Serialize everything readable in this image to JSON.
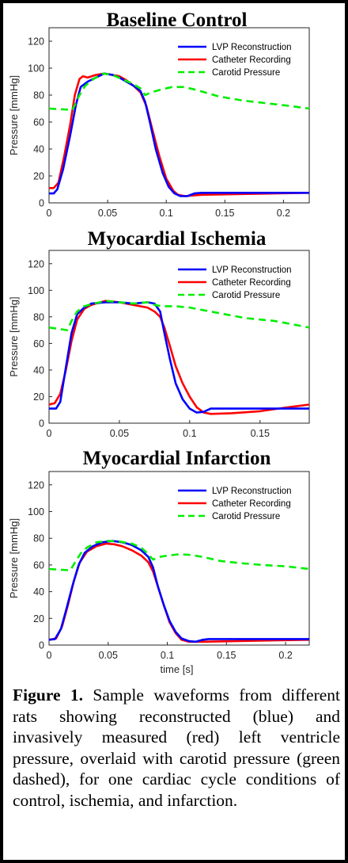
{
  "caption": {
    "label": "Figure 1.",
    "text": "Sample waveforms from different rats showing reconstructed (blue) and invasively measured (red) left ventricle pressure, overlaid with carotid pressure (green dashed), for one cardiac cycle conditions of control, ischemia, and infarction."
  },
  "colors": {
    "lvp": "#0000ff",
    "catheter": "#ff0000",
    "carotid": "#00ee00"
  },
  "chart_data": [
    {
      "type": "line",
      "title": "Baseline Control",
      "ylabel": "Pressure [mmHg]",
      "xlabel": "",
      "xlim": [
        0,
        0.222
      ],
      "ylim": [
        0,
        130
      ],
      "xticks": [
        0,
        0.05,
        0.1,
        0.15,
        0.2
      ],
      "xticklabels": [
        "0",
        "0.05",
        "0.1",
        "0.15",
        "0.2"
      ],
      "yticks": [
        0,
        20,
        40,
        60,
        80,
        100,
        120
      ],
      "legend": "top-right",
      "series": [
        {
          "name": "LVP Reconstruction",
          "style": "solid",
          "color": "#0000ff",
          "points": [
            [
              0,
              7
            ],
            [
              0.004,
              7
            ],
            [
              0.007,
              10
            ],
            [
              0.012,
              25
            ],
            [
              0.018,
              50
            ],
            [
              0.023,
              73
            ],
            [
              0.027,
              86
            ],
            [
              0.033,
              90
            ],
            [
              0.04,
              93
            ],
            [
              0.047,
              96
            ],
            [
              0.054,
              95
            ],
            [
              0.06,
              93
            ],
            [
              0.066,
              90
            ],
            [
              0.072,
              87
            ],
            [
              0.078,
              83
            ],
            [
              0.082,
              75
            ],
            [
              0.086,
              60
            ],
            [
              0.091,
              40
            ],
            [
              0.097,
              22
            ],
            [
              0.102,
              12
            ],
            [
              0.107,
              7
            ],
            [
              0.112,
              5
            ],
            [
              0.118,
              5
            ],
            [
              0.124,
              7
            ],
            [
              0.13,
              7.5
            ],
            [
              0.222,
              7.5
            ]
          ]
        },
        {
          "name": "Catheter Recording",
          "style": "solid",
          "color": "#ff0000",
          "points": [
            [
              0,
              11
            ],
            [
              0.004,
              11
            ],
            [
              0.008,
              15
            ],
            [
              0.013,
              35
            ],
            [
              0.018,
              58
            ],
            [
              0.022,
              80
            ],
            [
              0.026,
              92
            ],
            [
              0.029,
              94
            ],
            [
              0.033,
              93
            ],
            [
              0.04,
              95
            ],
            [
              0.047,
              96
            ],
            [
              0.054,
              95
            ],
            [
              0.06,
              94
            ],
            [
              0.066,
              91
            ],
            [
              0.072,
              87
            ],
            [
              0.078,
              82
            ],
            [
              0.083,
              72
            ],
            [
              0.088,
              55
            ],
            [
              0.094,
              35
            ],
            [
              0.1,
              18
            ],
            [
              0.106,
              9
            ],
            [
              0.11,
              6
            ],
            [
              0.116,
              5
            ],
            [
              0.13,
              6
            ],
            [
              0.16,
              6.5
            ],
            [
              0.222,
              7.5
            ]
          ]
        },
        {
          "name": "Carotid Pressure",
          "style": "dashed",
          "color": "#00ee00",
          "points": [
            [
              0,
              70
            ],
            [
              0.02,
              69
            ],
            [
              0.026,
              80
            ],
            [
              0.031,
              87
            ],
            [
              0.038,
              92
            ],
            [
              0.046,
              96
            ],
            [
              0.054,
              95
            ],
            [
              0.062,
              92
            ],
            [
              0.07,
              89
            ],
            [
              0.078,
              85
            ],
            [
              0.082,
              80
            ],
            [
              0.087,
              82
            ],
            [
              0.095,
              84
            ],
            [
              0.105,
              86
            ],
            [
              0.115,
              86
            ],
            [
              0.125,
              84
            ],
            [
              0.145,
              79
            ],
            [
              0.165,
              76
            ],
            [
              0.185,
              74
            ],
            [
              0.205,
              72
            ],
            [
              0.222,
              70
            ]
          ]
        }
      ]
    },
    {
      "type": "line",
      "title": "Myocardial Ischemia",
      "ylabel": "Pressure [mmHg]",
      "xlabel": "",
      "xlim": [
        0,
        0.185
      ],
      "ylim": [
        0,
        130
      ],
      "xticks": [
        0,
        0.05,
        0.1,
        0.15
      ],
      "xticklabels": [
        "0",
        "0.05",
        "0.1",
        "0.15"
      ],
      "yticks": [
        0,
        20,
        40,
        60,
        80,
        100,
        120
      ],
      "legend": "top-right",
      "series": [
        {
          "name": "LVP Reconstruction",
          "style": "solid",
          "color": "#0000ff",
          "points": [
            [
              0,
              11
            ],
            [
              0.005,
              11
            ],
            [
              0.008,
              16
            ],
            [
              0.012,
              42
            ],
            [
              0.016,
              68
            ],
            [
              0.02,
              82
            ],
            [
              0.025,
              87
            ],
            [
              0.03,
              90
            ],
            [
              0.04,
              91
            ],
            [
              0.05,
              91
            ],
            [
              0.06,
              90
            ],
            [
              0.07,
              91
            ],
            [
              0.075,
              90
            ],
            [
              0.079,
              84
            ],
            [
              0.082,
              68
            ],
            [
              0.086,
              48
            ],
            [
              0.09,
              30
            ],
            [
              0.095,
              18
            ],
            [
              0.1,
              11
            ],
            [
              0.105,
              8
            ],
            [
              0.11,
              8.5
            ],
            [
              0.115,
              11
            ],
            [
              0.185,
              11
            ]
          ]
        },
        {
          "name": "Catheter Recording",
          "style": "solid",
          "color": "#ff0000",
          "points": [
            [
              0,
              14
            ],
            [
              0.004,
              15
            ],
            [
              0.008,
              22
            ],
            [
              0.012,
              40
            ],
            [
              0.016,
              62
            ],
            [
              0.02,
              78
            ],
            [
              0.025,
              86
            ],
            [
              0.03,
              89
            ],
            [
              0.04,
              92
            ],
            [
              0.05,
              91
            ],
            [
              0.06,
              89
            ],
            [
              0.07,
              87
            ],
            [
              0.075,
              84
            ],
            [
              0.079,
              80
            ],
            [
              0.082,
              72
            ],
            [
              0.086,
              58
            ],
            [
              0.09,
              43
            ],
            [
              0.095,
              30
            ],
            [
              0.1,
              20
            ],
            [
              0.105,
              12
            ],
            [
              0.11,
              8
            ],
            [
              0.115,
              7
            ],
            [
              0.13,
              7.5
            ],
            [
              0.15,
              9
            ],
            [
              0.17,
              12
            ],
            [
              0.185,
              14
            ]
          ]
        },
        {
          "name": "Carotid Pressure",
          "style": "dashed",
          "color": "#00ee00",
          "points": [
            [
              0,
              72
            ],
            [
              0.013,
              70
            ],
            [
              0.016,
              77
            ],
            [
              0.02,
              84
            ],
            [
              0.025,
              88
            ],
            [
              0.032,
              90
            ],
            [
              0.04,
              92
            ],
            [
              0.05,
              91
            ],
            [
              0.06,
              90
            ],
            [
              0.07,
              91
            ],
            [
              0.075,
              89
            ],
            [
              0.08,
              88
            ],
            [
              0.09,
              88
            ],
            [
              0.1,
              87
            ],
            [
              0.11,
              85
            ],
            [
              0.12,
              83
            ],
            [
              0.13,
              81
            ],
            [
              0.14,
              79
            ],
            [
              0.15,
              78
            ],
            [
              0.16,
              77
            ],
            [
              0.17,
              75
            ],
            [
              0.185,
              72
            ]
          ]
        }
      ]
    },
    {
      "type": "line",
      "title": "Myocardial Infarction",
      "ylabel": "Pressure [mmHg]",
      "xlabel": "time [s]",
      "xlim": [
        0,
        0.22
      ],
      "ylim": [
        0,
        130
      ],
      "xticks": [
        0,
        0.05,
        0.1,
        0.15,
        0.2
      ],
      "xticklabels": [
        "0",
        "0.05",
        "0.1",
        "0.15",
        "0.2"
      ],
      "yticks": [
        0,
        20,
        40,
        60,
        80,
        100,
        120
      ],
      "legend": "top-right",
      "series": [
        {
          "name": "LVP Reconstruction",
          "style": "solid",
          "color": "#0000ff",
          "points": [
            [
              0,
              4
            ],
            [
              0.005,
              4.5
            ],
            [
              0.01,
              12
            ],
            [
              0.015,
              28
            ],
            [
              0.02,
              45
            ],
            [
              0.025,
              60
            ],
            [
              0.03,
              69
            ],
            [
              0.037,
              74
            ],
            [
              0.045,
              77
            ],
            [
              0.054,
              78
            ],
            [
              0.062,
              77
            ],
            [
              0.07,
              75
            ],
            [
              0.078,
              71
            ],
            [
              0.084,
              66
            ],
            [
              0.088,
              58
            ],
            [
              0.092,
              44
            ],
            [
              0.097,
              30
            ],
            [
              0.102,
              18
            ],
            [
              0.107,
              10
            ],
            [
              0.112,
              5
            ],
            [
              0.118,
              3
            ],
            [
              0.124,
              2.5
            ],
            [
              0.13,
              4
            ],
            [
              0.135,
              4.5
            ],
            [
              0.22,
              4.5
            ]
          ]
        },
        {
          "name": "Catheter Recording",
          "style": "solid",
          "color": "#ff0000",
          "points": [
            [
              0,
              4
            ],
            [
              0.006,
              5
            ],
            [
              0.011,
              14
            ],
            [
              0.016,
              30
            ],
            [
              0.021,
              48
            ],
            [
              0.026,
              62
            ],
            [
              0.032,
              70
            ],
            [
              0.04,
              74
            ],
            [
              0.048,
              76
            ],
            [
              0.055,
              75.5
            ],
            [
              0.062,
              74
            ],
            [
              0.07,
              71
            ],
            [
              0.078,
              67
            ],
            [
              0.084,
              62
            ],
            [
              0.088,
              55
            ],
            [
              0.092,
              44
            ],
            [
              0.097,
              30
            ],
            [
              0.102,
              17
            ],
            [
              0.107,
              9
            ],
            [
              0.112,
              4
            ],
            [
              0.118,
              2.5
            ],
            [
              0.13,
              2.5
            ],
            [
              0.16,
              3
            ],
            [
              0.19,
              3.5
            ],
            [
              0.22,
              4
            ]
          ]
        },
        {
          "name": "Carotid Pressure",
          "style": "dashed",
          "color": "#00ee00",
          "points": [
            [
              0,
              57
            ],
            [
              0.018,
              56
            ],
            [
              0.022,
              62
            ],
            [
              0.027,
              69
            ],
            [
              0.032,
              73
            ],
            [
              0.04,
              77
            ],
            [
              0.05,
              78
            ],
            [
              0.06,
              77.5
            ],
            [
              0.07,
              76
            ],
            [
              0.078,
              73
            ],
            [
              0.084,
              68
            ],
            [
              0.088,
              64
            ],
            [
              0.093,
              66
            ],
            [
              0.1,
              67
            ],
            [
              0.11,
              68
            ],
            [
              0.12,
              67.5
            ],
            [
              0.13,
              66
            ],
            [
              0.145,
              63
            ],
            [
              0.16,
              61.5
            ],
            [
              0.18,
              60
            ],
            [
              0.2,
              59
            ],
            [
              0.22,
              57
            ]
          ]
        }
      ]
    }
  ]
}
